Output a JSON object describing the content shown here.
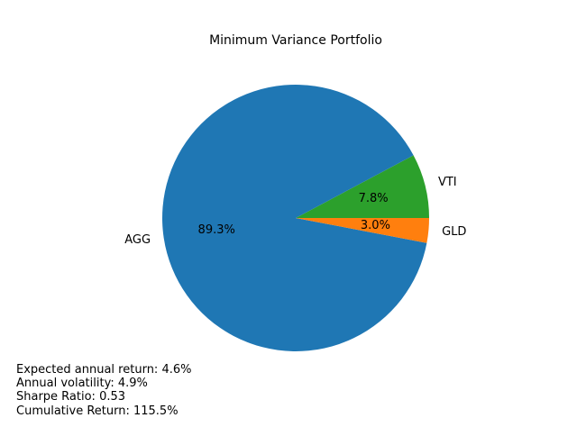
{
  "chart_data": {
    "type": "pie",
    "title": "Minimum Variance Portfolio",
    "slices": [
      {
        "label": "VTI",
        "value": 7.8,
        "pct_label": "7.8%",
        "color": "#2ca02c"
      },
      {
        "label": "AGG",
        "value": 89.3,
        "pct_label": "89.3%",
        "color": "#1f77b4"
      },
      {
        "label": "GLD",
        "value": 3.0,
        "pct_label": "3.0%",
        "color": "#ff7f0e"
      }
    ],
    "legend": "none"
  },
  "stats": {
    "expected_return": "Expected annual return: 4.6%",
    "volatility": "Annual volatility: 4.9%",
    "sharpe": "Sharpe Ratio: 0.53",
    "cumulative": "Cumulative Return: 115.5%"
  }
}
